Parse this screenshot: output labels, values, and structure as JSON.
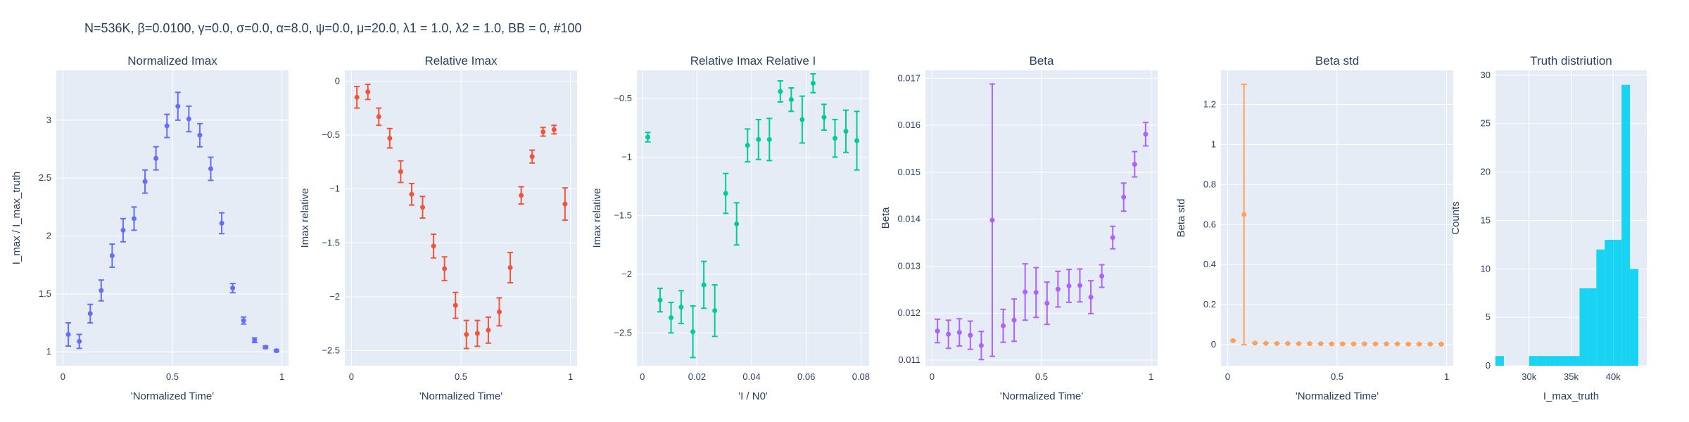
{
  "figure_title": "N=536K, β=0.0100, γ=0.0, σ=0.0,  α=8.0, ψ=0.0, μ=20.0, λ1 = 1.0, λ2 = 1.0, BB = 0, #100",
  "colors": {
    "plot_bg": "#e5ecf6",
    "grid": "#ffffff",
    "text": "#2a3f5f",
    "blue": "#636efa",
    "red": "#ef553b",
    "green": "#00cc96",
    "purple": "#ab63fa",
    "orange": "#ffa15a",
    "cyan": "#19d3f3"
  },
  "chart_data": [
    {
      "type": "scatter",
      "title": "Normalized Imax",
      "xlabel": "'Normalized Time'",
      "ylabel": "I_max / I_max_truth",
      "xlim": [
        -0.03,
        1.03
      ],
      "ylim": [
        0.88,
        3.43
      ],
      "xticks": [
        0,
        0.5,
        1
      ],
      "xtick_labels": [
        "0",
        "0.5",
        "1"
      ],
      "yticks": [
        1,
        1.5,
        2,
        2.5,
        3
      ],
      "ytick_labels": [
        "1",
        "1.5",
        "2",
        "2.5",
        "3"
      ],
      "color": "#636efa",
      "x": [
        0.025,
        0.075,
        0.125,
        0.175,
        0.225,
        0.275,
        0.325,
        0.375,
        0.425,
        0.475,
        0.525,
        0.575,
        0.625,
        0.675,
        0.725,
        0.775,
        0.825,
        0.875,
        0.925,
        0.975
      ],
      "y": [
        1.15,
        1.09,
        1.33,
        1.53,
        1.83,
        2.05,
        2.15,
        2.47,
        2.67,
        2.95,
        3.12,
        3.01,
        2.87,
        2.58,
        2.11,
        1.55,
        1.27,
        1.1,
        1.04,
        1.01
      ],
      "err": [
        0.1,
        0.06,
        0.08,
        0.09,
        0.1,
        0.1,
        0.1,
        0.1,
        0.1,
        0.1,
        0.12,
        0.11,
        0.1,
        0.1,
        0.09,
        0.04,
        0.03,
        0.02,
        0.01,
        0.01
      ]
    },
    {
      "type": "scatter",
      "title": "Relative Imax",
      "xlabel": "'Normalized Time'",
      "ylabel": "Imax relative",
      "xlim": [
        -0.03,
        1.03
      ],
      "ylim": [
        -2.64,
        0.1
      ],
      "xticks": [
        0,
        0.5,
        1
      ],
      "xtick_labels": [
        "0",
        "0.5",
        "1"
      ],
      "yticks": [
        0,
        -0.5,
        -1,
        -1.5,
        -2,
        -2.5
      ],
      "ytick_labels": [
        "0",
        "−0.5",
        "−1",
        "−1.5",
        "−2",
        "−2.5"
      ],
      "color": "#ef553b",
      "x": [
        0.025,
        0.075,
        0.125,
        0.175,
        0.225,
        0.275,
        0.325,
        0.375,
        0.425,
        0.475,
        0.525,
        0.575,
        0.625,
        0.675,
        0.725,
        0.775,
        0.825,
        0.875,
        0.925,
        0.975
      ],
      "y": [
        -0.15,
        -0.1,
        -0.33,
        -0.53,
        -0.84,
        -1.05,
        -1.17,
        -1.53,
        -1.74,
        -2.08,
        -2.35,
        -2.34,
        -2.31,
        -2.14,
        -1.73,
        -1.06,
        -0.7,
        -0.47,
        -0.45,
        -1.14
      ],
      "err": [
        0.1,
        0.07,
        0.08,
        0.09,
        0.1,
        0.1,
        0.1,
        0.11,
        0.11,
        0.12,
        0.13,
        0.12,
        0.12,
        0.13,
        0.14,
        0.08,
        0.06,
        0.04,
        0.04,
        0.15
      ]
    },
    {
      "type": "scatter",
      "title": "Relative Imax Relative I",
      "xlabel": "'I / N0'",
      "ylabel": "Imax relative",
      "xlim": [
        -0.002,
        0.083
      ],
      "ylim": [
        -2.78,
        -0.26
      ],
      "xticks": [
        0,
        0.02,
        0.04,
        0.06,
        0.08
      ],
      "xtick_labels": [
        "0",
        "0.02",
        "0.04",
        "0.06",
        "0.08"
      ],
      "yticks": [
        -0.5,
        -1,
        -1.5,
        -2,
        -2.5
      ],
      "ytick_labels": [
        "−0.5",
        "−1",
        "−1.5",
        "−2",
        "−2.5"
      ],
      "color": "#00cc96",
      "x": [
        0.002,
        0.0065,
        0.0105,
        0.0142,
        0.0185,
        0.0225,
        0.0265,
        0.0305,
        0.0345,
        0.0385,
        0.0425,
        0.0465,
        0.0505,
        0.0545,
        0.0585,
        0.0625,
        0.0665,
        0.0705,
        0.0745,
        0.0785
      ],
      "y": [
        -0.83,
        -2.22,
        -2.37,
        -2.28,
        -2.49,
        -2.09,
        -2.31,
        -1.31,
        -1.57,
        -0.9,
        -0.85,
        -0.85,
        -0.44,
        -0.51,
        -0.68,
        -0.37,
        -0.66,
        -0.84,
        -0.78,
        -0.86
      ],
      "err": [
        0.04,
        0.1,
        0.13,
        0.14,
        0.22,
        0.2,
        0.22,
        0.17,
        0.18,
        0.14,
        0.17,
        0.18,
        0.09,
        0.1,
        0.2,
        0.08,
        0.11,
        0.16,
        0.18,
        0.25
      ]
    },
    {
      "type": "scatter",
      "title": "Beta",
      "xlabel": "'Normalized Time'",
      "ylabel": "Beta",
      "xlim": [
        -0.03,
        1.03
      ],
      "ylim": [
        0.01088,
        0.01717
      ],
      "xticks": [
        0,
        0.5,
        1
      ],
      "xtick_labels": [
        "0",
        "0.5",
        "1"
      ],
      "yticks": [
        0.011,
        0.012,
        0.013,
        0.014,
        0.015,
        0.016,
        0.017
      ],
      "ytick_labels": [
        "0.011",
        "0.012",
        "0.013",
        "0.014",
        "0.015",
        "0.016",
        "0.017"
      ],
      "color": "#ab63fa",
      "x": [
        0.025,
        0.075,
        0.125,
        0.175,
        0.225,
        0.275,
        0.325,
        0.375,
        0.425,
        0.475,
        0.525,
        0.575,
        0.625,
        0.675,
        0.725,
        0.775,
        0.825,
        0.875,
        0.925,
        0.975
      ],
      "y": [
        0.01162,
        0.01155,
        0.01159,
        0.01153,
        0.01131,
        0.01398,
        0.01173,
        0.01185,
        0.01245,
        0.01244,
        0.01221,
        0.01251,
        0.01258,
        0.01259,
        0.01234,
        0.01279,
        0.01361,
        0.01447,
        0.01517,
        0.01581
      ],
      "err": [
        0.00025,
        0.0003,
        0.00029,
        0.0003,
        0.0003,
        0.0029,
        0.00035,
        0.00045,
        0.0006,
        0.00053,
        0.00045,
        0.00038,
        0.00035,
        0.00035,
        0.00035,
        0.00024,
        0.00024,
        0.0003,
        0.00027,
        0.00025
      ]
    },
    {
      "type": "scatter",
      "title": "Beta std",
      "xlabel": "'Normalized Time'",
      "ylabel": "Beta std",
      "xlim": [
        -0.03,
        1.03
      ],
      "ylim": [
        -0.105,
        1.37
      ],
      "xticks": [
        0,
        0.5,
        1
      ],
      "xtick_labels": [
        "0",
        "0.5",
        "1"
      ],
      "yticks": [
        0,
        0.2,
        0.4,
        0.6,
        0.8,
        1,
        1.2
      ],
      "ytick_labels": [
        "0",
        "0.2",
        "0.4",
        "0.6",
        "0.8",
        "1",
        "1.2"
      ],
      "color": "#ffa15a",
      "x": [
        0.025,
        0.075,
        0.125,
        0.175,
        0.225,
        0.275,
        0.325,
        0.375,
        0.425,
        0.475,
        0.525,
        0.575,
        0.625,
        0.675,
        0.725,
        0.775,
        0.825,
        0.875,
        0.925,
        0.975
      ],
      "y": [
        0.02,
        0.65,
        0.008,
        0.007,
        0.006,
        0.006,
        0.005,
        0.005,
        0.005,
        0.004,
        0.004,
        0.004,
        0.004,
        0.004,
        0.004,
        0.004,
        0.003,
        0.003,
        0.003,
        0.003
      ],
      "err": [
        0.002,
        0.65,
        0.002,
        0.001,
        0.001,
        0.001,
        0.001,
        0.001,
        0.001,
        0.001,
        0.001,
        0.001,
        0.001,
        0.001,
        0.001,
        0.001,
        0.001,
        0.001,
        0.001,
        0.001
      ]
    },
    {
      "type": "bar",
      "title": "Truth distriution",
      "xlabel": "I_max_truth",
      "ylabel": "Counts",
      "xlim": [
        26000,
        44000
      ],
      "ylim": [
        0,
        30.5
      ],
      "xticks": [
        30000,
        35000,
        40000
      ],
      "xtick_labels": [
        "30k",
        "35k",
        "40k"
      ],
      "yticks": [
        0,
        5,
        10,
        15,
        20,
        25,
        30
      ],
      "ytick_labels": [
        "0",
        "5",
        "10",
        "15",
        "20",
        "25",
        "30"
      ],
      "color": "#19d3f3",
      "bin_starts": [
        26000,
        27000,
        28000,
        29000,
        30000,
        31000,
        32000,
        33000,
        34000,
        35000,
        36000,
        37000,
        38000,
        39000,
        40000,
        41000,
        42000,
        43000
      ],
      "bin_width": 1000,
      "values": [
        1,
        0,
        0,
        0,
        1,
        1,
        1,
        1,
        1,
        1,
        8,
        8,
        12,
        13,
        13,
        29,
        10,
        0
      ]
    }
  ]
}
